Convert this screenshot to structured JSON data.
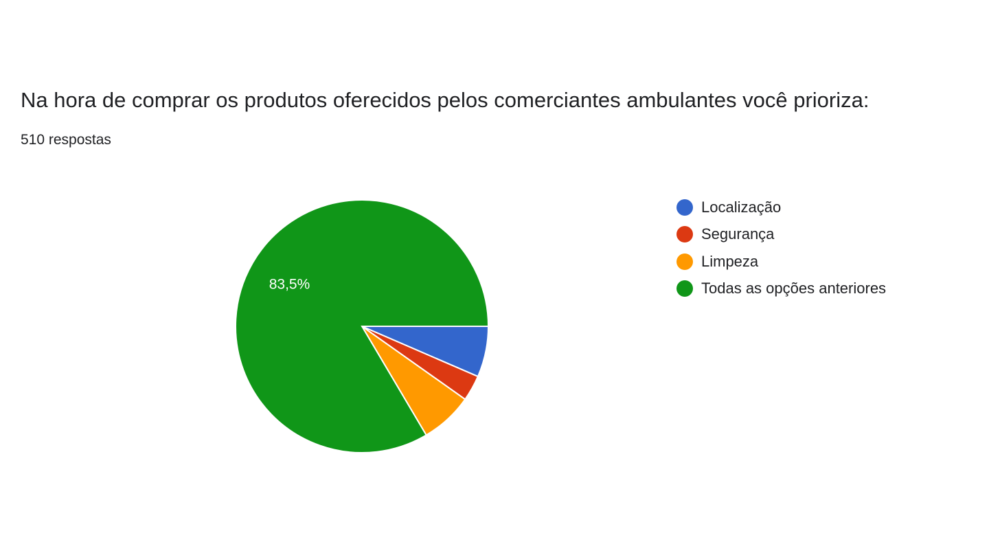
{
  "question": {
    "title": "Na hora de comprar os produtos oferecidos pelos comerciantes ambulantes você prioriza:",
    "response_count": "510 respostas"
  },
  "chart_data": {
    "type": "pie",
    "title": "Na hora de comprar os produtos oferecidos pelos comerciantes ambulantes você prioriza:",
    "categories": [
      "Localização",
      "Segurança",
      "Limpeza",
      "Todas as opções anteriores"
    ],
    "values": [
      6.5,
      3.3,
      6.7,
      83.5
    ],
    "colors": [
      "#3366cc",
      "#dc3912",
      "#ff9900",
      "#109618"
    ],
    "data_labels": [
      "",
      "",
      "",
      "83,5%"
    ],
    "start_angle_deg": 90,
    "direction": "clockwise",
    "legend_position": "right"
  }
}
